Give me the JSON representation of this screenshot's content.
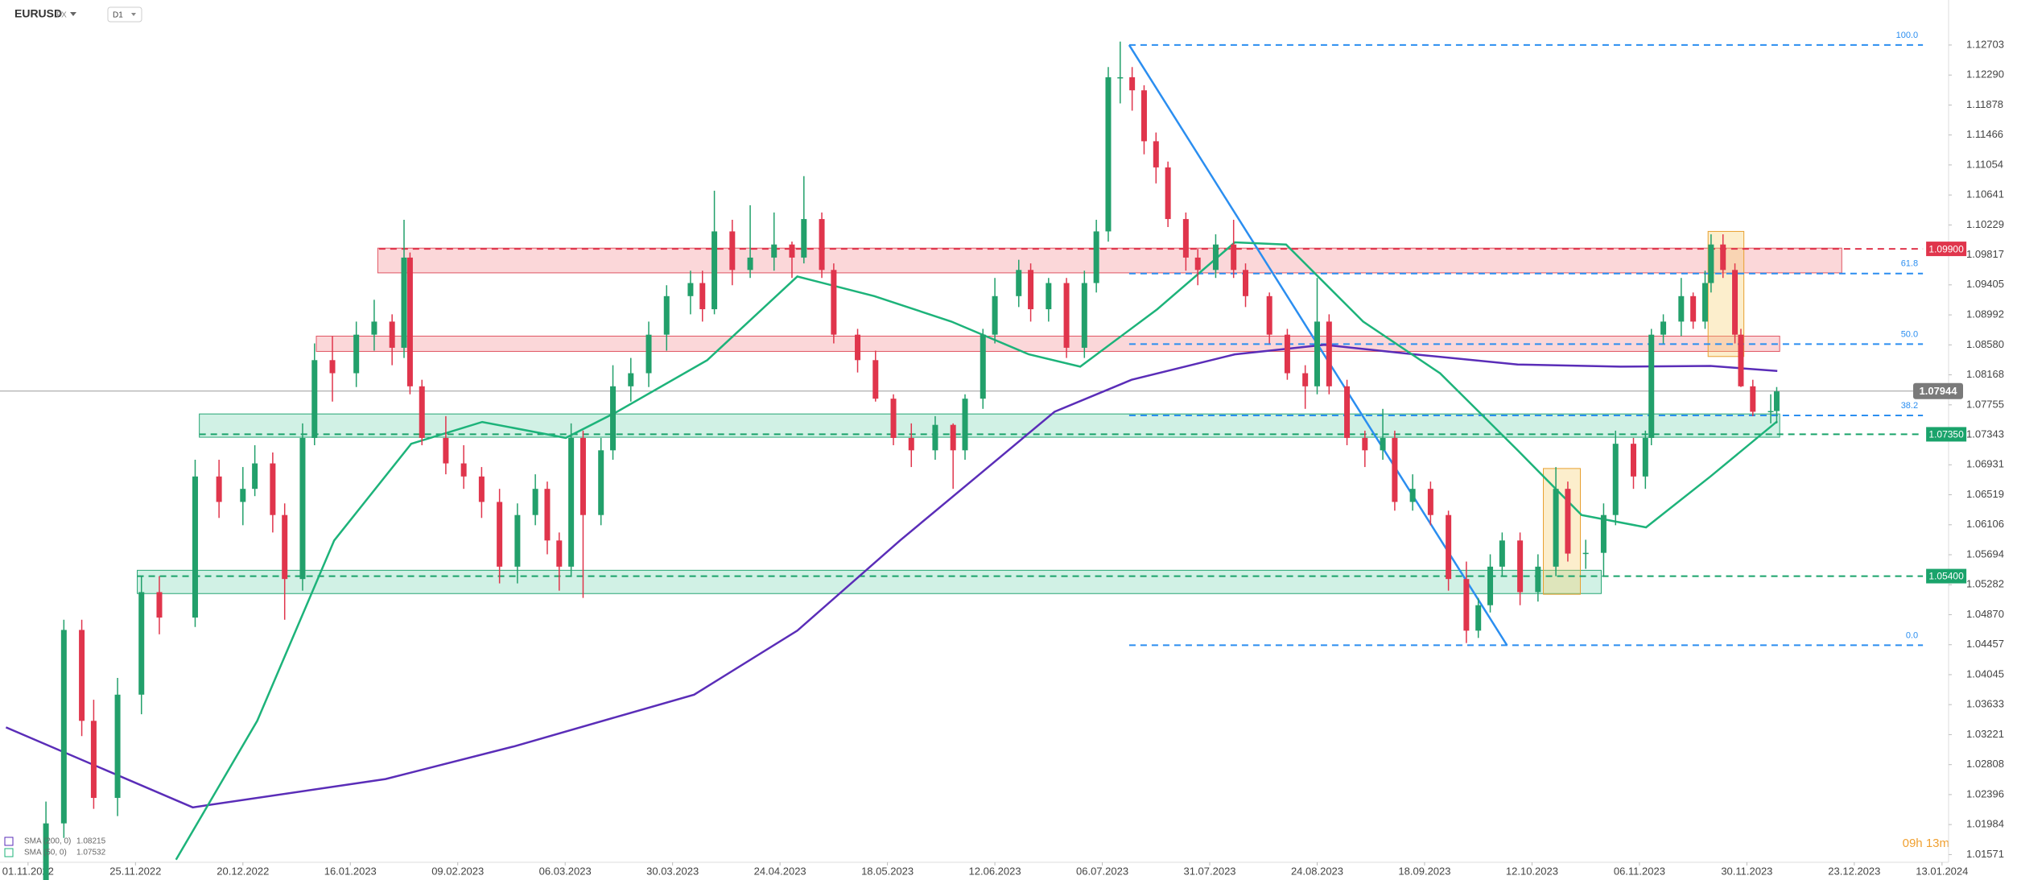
{
  "chart_data": {
    "type": "candlestick",
    "symbol": "EURUSD",
    "market": "FX",
    "timeframe": "D1",
    "timer": "09h 13m",
    "xlim": [
      -4.7,
      321.8
    ],
    "ylim": [
      1.01465,
      1.13322
    ],
    "bull_color": "#22a06b",
    "bear_color": "#e0354c",
    "xticks": [
      {
        "value": 0,
        "label": "01.11.2022"
      },
      {
        "value": 18,
        "label": "25.11.2022"
      },
      {
        "value": 36,
        "label": "20.12.2022"
      },
      {
        "value": 54,
        "label": "16.01.2023"
      },
      {
        "value": 72,
        "label": "09.02.2023"
      },
      {
        "value": 90,
        "label": "06.03.2023"
      },
      {
        "value": 108,
        "label": "30.03.2023"
      },
      {
        "value": 126,
        "label": "24.04.2023"
      },
      {
        "value": 144,
        "label": "18.05.2023"
      },
      {
        "value": 162,
        "label": "12.06.2023"
      },
      {
        "value": 180,
        "label": "06.07.2023"
      },
      {
        "value": 198,
        "label": "31.07.2023"
      },
      {
        "value": 216,
        "label": "24.08.2023"
      },
      {
        "value": 234,
        "label": "18.09.2023"
      },
      {
        "value": 252,
        "label": "12.10.2023"
      },
      {
        "value": 270,
        "label": "06.11.2023"
      },
      {
        "value": 288,
        "label": "30.11.2023"
      },
      {
        "value": 306,
        "label": "23.12.2023"
      },
      {
        "value": 320.7,
        "label": "13.01.2024"
      }
    ],
    "yticks": [
      1.12703,
      {
        "value": 1.1229,
        "label": "1.12290"
      },
      1.11878,
      1.11466,
      1.11054,
      1.10641,
      1.10229,
      1.09817,
      1.09405,
      1.08992,
      {
        "value": 1.0858,
        "label": "1.08580"
      },
      1.08168,
      1.07755,
      1.07343,
      1.06931,
      1.06519,
      1.06106,
      1.05694,
      1.05282,
      {
        "value": 1.0487,
        "label": "1.04870"
      },
      1.04457,
      1.04045,
      1.03633,
      1.03221,
      1.02808,
      1.02396,
      1.01984,
      1.01571
    ],
    "candles": [
      {
        "x": 3,
        "o": 1.012,
        "h": 1.023,
        "l": 1.009,
        "c": 1.02
      },
      {
        "x": 6,
        "o": 1.02,
        "h": 1.048,
        "l": 1.018,
        "c": 1.0466
      },
      {
        "x": 9,
        "o": 1.0466,
        "h": 1.048,
        "l": 1.032,
        "c": 1.0341
      },
      {
        "x": 11,
        "o": 1.0341,
        "h": 1.037,
        "l": 1.022,
        "c": 1.0235
      },
      {
        "x": 15,
        "o": 1.0235,
        "h": 1.04,
        "l": 1.021,
        "c": 1.0377
      },
      {
        "x": 19,
        "o": 1.0377,
        "h": 1.054,
        "l": 1.035,
        "c": 1.0518
      },
      {
        "x": 22,
        "o": 1.0518,
        "h": 1.054,
        "l": 1.046,
        "c": 1.0483
      },
      {
        "x": 28,
        "o": 1.0483,
        "h": 1.07,
        "l": 1.047,
        "c": 1.0677
      },
      {
        "x": 32,
        "o": 1.0677,
        "h": 1.07,
        "l": 1.062,
        "c": 1.0642
      },
      {
        "x": 36,
        "o": 1.0642,
        "h": 1.069,
        "l": 1.061,
        "c": 1.066
      },
      {
        "x": 38,
        "o": 1.066,
        "h": 1.072,
        "l": 1.065,
        "c": 1.0695
      },
      {
        "x": 41,
        "o": 1.0695,
        "h": 1.071,
        "l": 1.06,
        "c": 1.0624
      },
      {
        "x": 43,
        "o": 1.0624,
        "h": 1.064,
        "l": 1.048,
        "c": 1.0536
      },
      {
        "x": 46,
        "o": 1.0536,
        "h": 1.075,
        "l": 1.052,
        "c": 1.073
      },
      {
        "x": 48,
        "o": 1.073,
        "h": 1.086,
        "l": 1.072,
        "c": 1.0837
      },
      {
        "x": 51,
        "o": 1.0837,
        "h": 1.087,
        "l": 1.078,
        "c": 1.0819
      },
      {
        "x": 55,
        "o": 1.0819,
        "h": 1.089,
        "l": 1.08,
        "c": 1.0872
      },
      {
        "x": 58,
        "o": 1.0872,
        "h": 1.092,
        "l": 1.085,
        "c": 1.089
      },
      {
        "x": 61,
        "o": 1.089,
        "h": 1.09,
        "l": 1.083,
        "c": 1.0854
      },
      {
        "x": 63,
        "o": 1.0854,
        "h": 1.103,
        "l": 1.084,
        "c": 1.0978
      },
      {
        "x": 64,
        "o": 1.0978,
        "h": 1.0985,
        "l": 1.079,
        "c": 1.0801
      },
      {
        "x": 66,
        "o": 1.0801,
        "h": 1.081,
        "l": 1.072,
        "c": 1.073
      },
      {
        "x": 70,
        "o": 1.073,
        "h": 1.076,
        "l": 1.068,
        "c": 1.0695
      },
      {
        "x": 73,
        "o": 1.0695,
        "h": 1.072,
        "l": 1.066,
        "c": 1.0677
      },
      {
        "x": 76,
        "o": 1.0677,
        "h": 1.069,
        "l": 1.062,
        "c": 1.0642
      },
      {
        "x": 79,
        "o": 1.0642,
        "h": 1.066,
        "l": 1.053,
        "c": 1.0553
      },
      {
        "x": 82,
        "o": 1.0553,
        "h": 1.064,
        "l": 1.053,
        "c": 1.0624
      },
      {
        "x": 85,
        "o": 1.0624,
        "h": 1.068,
        "l": 1.061,
        "c": 1.066
      },
      {
        "x": 87,
        "o": 1.066,
        "h": 1.067,
        "l": 1.057,
        "c": 1.0589
      },
      {
        "x": 89,
        "o": 1.0589,
        "h": 1.06,
        "l": 1.052,
        "c": 1.0553
      },
      {
        "x": 91,
        "o": 1.0553,
        "h": 1.075,
        "l": 1.054,
        "c": 1.073
      },
      {
        "x": 93,
        "o": 1.073,
        "h": 1.074,
        "l": 1.051,
        "c": 1.0624
      },
      {
        "x": 96,
        "o": 1.0624,
        "h": 1.073,
        "l": 1.061,
        "c": 1.0713
      },
      {
        "x": 98,
        "o": 1.0713,
        "h": 1.083,
        "l": 1.07,
        "c": 1.0801
      },
      {
        "x": 101,
        "o": 1.0801,
        "h": 1.084,
        "l": 1.078,
        "c": 1.0819
      },
      {
        "x": 104,
        "o": 1.0819,
        "h": 1.089,
        "l": 1.08,
        "c": 1.0872
      },
      {
        "x": 107,
        "o": 1.0872,
        "h": 1.094,
        "l": 1.085,
        "c": 1.0925
      },
      {
        "x": 111,
        "o": 1.0925,
        "h": 1.096,
        "l": 1.09,
        "c": 1.0943
      },
      {
        "x": 113,
        "o": 1.0943,
        "h": 1.096,
        "l": 1.089,
        "c": 1.0907
      },
      {
        "x": 115,
        "o": 1.0907,
        "h": 1.107,
        "l": 1.09,
        "c": 1.1014
      },
      {
        "x": 118,
        "o": 1.1014,
        "h": 1.103,
        "l": 1.094,
        "c": 1.0961
      },
      {
        "x": 121,
        "o": 1.0961,
        "h": 1.105,
        "l": 1.095,
        "c": 1.0978
      },
      {
        "x": 125,
        "o": 1.0978,
        "h": 1.104,
        "l": 1.096,
        "c": 1.0996
      },
      {
        "x": 128,
        "o": 1.0996,
        "h": 1.1,
        "l": 1.095,
        "c": 1.0978
      },
      {
        "x": 130,
        "o": 1.0978,
        "h": 1.109,
        "l": 1.097,
        "c": 1.1031
      },
      {
        "x": 133,
        "o": 1.1031,
        "h": 1.104,
        "l": 1.095,
        "c": 1.0961
      },
      {
        "x": 135,
        "o": 1.0961,
        "h": 1.097,
        "l": 1.086,
        "c": 1.0872
      },
      {
        "x": 139,
        "o": 1.0872,
        "h": 1.088,
        "l": 1.082,
        "c": 1.0837
      },
      {
        "x": 142,
        "o": 1.0837,
        "h": 1.085,
        "l": 1.078,
        "c": 1.0784
      },
      {
        "x": 145,
        "o": 1.0784,
        "h": 1.079,
        "l": 1.072,
        "c": 1.073
      },
      {
        "x": 148,
        "o": 1.073,
        "h": 1.075,
        "l": 1.069,
        "c": 1.0713
      },
      {
        "x": 152,
        "o": 1.0713,
        "h": 1.076,
        "l": 1.07,
        "c": 1.0748
      },
      {
        "x": 155,
        "o": 1.0748,
        "h": 1.075,
        "l": 1.066,
        "c": 1.0713
      },
      {
        "x": 157,
        "o": 1.0713,
        "h": 1.079,
        "l": 1.07,
        "c": 1.0784
      },
      {
        "x": 160,
        "o": 1.0784,
        "h": 1.088,
        "l": 1.077,
        "c": 1.0872
      },
      {
        "x": 162,
        "o": 1.0872,
        "h": 1.095,
        "l": 1.086,
        "c": 1.0925
      },
      {
        "x": 166,
        "o": 1.0925,
        "h": 1.0975,
        "l": 1.091,
        "c": 1.0961
      },
      {
        "x": 168,
        "o": 1.0961,
        "h": 1.097,
        "l": 1.089,
        "c": 1.0907
      },
      {
        "x": 171,
        "o": 1.0907,
        "h": 1.095,
        "l": 1.089,
        "c": 1.0943
      },
      {
        "x": 174,
        "o": 1.0943,
        "h": 1.095,
        "l": 1.084,
        "c": 1.0854
      },
      {
        "x": 177,
        "o": 1.0854,
        "h": 1.096,
        "l": 1.084,
        "c": 1.0943
      },
      {
        "x": 179,
        "o": 1.0943,
        "h": 1.103,
        "l": 1.093,
        "c": 1.1014
      },
      {
        "x": 181,
        "o": 1.1014,
        "h": 1.124,
        "l": 1.1,
        "c": 1.1226
      },
      {
        "x": 183,
        "o": 1.1226,
        "h": 1.1275,
        "l": 1.119,
        "c": 1.1226
      },
      {
        "x": 185,
        "o": 1.1226,
        "h": 1.124,
        "l": 1.118,
        "c": 1.1208
      },
      {
        "x": 187,
        "o": 1.1208,
        "h": 1.1215,
        "l": 1.112,
        "c": 1.1138
      },
      {
        "x": 189,
        "o": 1.1138,
        "h": 1.115,
        "l": 1.108,
        "c": 1.1102
      },
      {
        "x": 191,
        "o": 1.1102,
        "h": 1.111,
        "l": 1.102,
        "c": 1.1031
      },
      {
        "x": 194,
        "o": 1.1031,
        "h": 1.104,
        "l": 1.096,
        "c": 1.0978
      },
      {
        "x": 196,
        "o": 1.0978,
        "h": 1.099,
        "l": 1.094,
        "c": 1.0961
      },
      {
        "x": 199,
        "o": 1.0961,
        "h": 1.101,
        "l": 1.095,
        "c": 1.0996
      },
      {
        "x": 202,
        "o": 1.0996,
        "h": 1.103,
        "l": 1.095,
        "c": 1.0961
      },
      {
        "x": 204,
        "o": 1.0961,
        "h": 1.097,
        "l": 1.091,
        "c": 1.0925
      },
      {
        "x": 208,
        "o": 1.0925,
        "h": 1.093,
        "l": 1.086,
        "c": 1.0872
      },
      {
        "x": 211,
        "o": 1.0872,
        "h": 1.088,
        "l": 1.081,
        "c": 1.0819
      },
      {
        "x": 214,
        "o": 1.0819,
        "h": 1.083,
        "l": 1.077,
        "c": 1.0801
      },
      {
        "x": 216,
        "o": 1.0801,
        "h": 1.095,
        "l": 1.079,
        "c": 1.089
      },
      {
        "x": 218,
        "o": 1.089,
        "h": 1.09,
        "l": 1.079,
        "c": 1.0801
      },
      {
        "x": 221,
        "o": 1.0801,
        "h": 1.081,
        "l": 1.072,
        "c": 1.073
      },
      {
        "x": 224,
        "o": 1.073,
        "h": 1.074,
        "l": 1.069,
        "c": 1.0713
      },
      {
        "x": 227,
        "o": 1.0713,
        "h": 1.077,
        "l": 1.07,
        "c": 1.073
      },
      {
        "x": 229,
        "o": 1.073,
        "h": 1.074,
        "l": 1.063,
        "c": 1.0642
      },
      {
        "x": 232,
        "o": 1.0642,
        "h": 1.068,
        "l": 1.063,
        "c": 1.066
      },
      {
        "x": 235,
        "o": 1.066,
        "h": 1.067,
        "l": 1.061,
        "c": 1.0624
      },
      {
        "x": 238,
        "o": 1.0624,
        "h": 1.063,
        "l": 1.052,
        "c": 1.0536
      },
      {
        "x": 241,
        "o": 1.0536,
        "h": 1.056,
        "l": 1.0448,
        "c": 1.0465
      },
      {
        "x": 243,
        "o": 1.0465,
        "h": 1.051,
        "l": 1.0455,
        "c": 1.05
      },
      {
        "x": 245,
        "o": 1.05,
        "h": 1.057,
        "l": 1.049,
        "c": 1.0553
      },
      {
        "x": 247,
        "o": 1.0553,
        "h": 1.06,
        "l": 1.054,
        "c": 1.0589
      },
      {
        "x": 250,
        "o": 1.0589,
        "h": 1.06,
        "l": 1.05,
        "c": 1.0518
      },
      {
        "x": 253,
        "o": 1.0518,
        "h": 1.057,
        "l": 1.0505,
        "c": 1.0553
      },
      {
        "x": 256,
        "o": 1.0553,
        "h": 1.069,
        "l": 1.054,
        "c": 1.066
      },
      {
        "x": 258,
        "o": 1.066,
        "h": 1.067,
        "l": 1.056,
        "c": 1.0571
      },
      {
        "x": 261,
        "o": 1.0571,
        "h": 1.059,
        "l": 1.055,
        "c": 1.0572
      },
      {
        "x": 264,
        "o": 1.0572,
        "h": 1.064,
        "l": 1.054,
        "c": 1.0624
      },
      {
        "x": 266,
        "o": 1.0624,
        "h": 1.074,
        "l": 1.061,
        "c": 1.0722
      },
      {
        "x": 269,
        "o": 1.0722,
        "h": 1.073,
        "l": 1.066,
        "c": 1.0677
      },
      {
        "x": 271,
        "o": 1.0677,
        "h": 1.074,
        "l": 1.066,
        "c": 1.073
      },
      {
        "x": 272,
        "o": 1.073,
        "h": 1.088,
        "l": 1.072,
        "c": 1.0872
      },
      {
        "x": 274,
        "o": 1.0872,
        "h": 1.09,
        "l": 1.086,
        "c": 1.089
      },
      {
        "x": 277,
        "o": 1.089,
        "h": 1.095,
        "l": 1.087,
        "c": 1.0925
      },
      {
        "x": 279,
        "o": 1.0925,
        "h": 1.093,
        "l": 1.088,
        "c": 1.089
      },
      {
        "x": 281,
        "o": 1.089,
        "h": 1.096,
        "l": 1.088,
        "c": 1.0943
      },
      {
        "x": 282,
        "o": 1.0943,
        "h": 1.101,
        "l": 1.093,
        "c": 1.0996
      },
      {
        "x": 284,
        "o": 1.0996,
        "h": 1.101,
        "l": 1.095,
        "c": 1.0961
      },
      {
        "x": 286,
        "o": 1.0961,
        "h": 1.097,
        "l": 1.086,
        "c": 1.0872
      },
      {
        "x": 287,
        "o": 1.0872,
        "h": 1.088,
        "l": 1.08,
        "c": 1.0801
      },
      {
        "x": 289,
        "o": 1.0801,
        "h": 1.081,
        "l": 1.076,
        "c": 1.0766
      },
      {
        "x": 292,
        "o": 1.0766,
        "h": 1.079,
        "l": 1.075,
        "c": 1.0767
      },
      {
        "x": 293,
        "o": 1.0767,
        "h": 1.08,
        "l": 1.075,
        "c": 1.0794
      }
    ],
    "series": [
      {
        "name": "SMA (200, 0)",
        "last": 1.08215,
        "color": "#5a2db8",
        "x": [
          -3.7,
          27.6,
          59.9,
          81.5,
          111.6,
          128.9,
          146.1,
          159,
          172,
          184.9,
          202.2,
          217.2,
          232.3,
          249.6,
          266.8,
          281.9,
          293.1
        ],
        "values": [
          1.0332,
          1.0222,
          1.0261,
          1.0306,
          1.0377,
          1.0465,
          1.0589,
          1.0677,
          1.0766,
          1.081,
          1.0845,
          1.0858,
          1.0845,
          1.0831,
          1.0828,
          1.0829,
          1.0822
        ]
      },
      {
        "name": "SMA (50, 0)",
        "last": 1.07532,
        "color": "#1db37a",
        "x": [
          24.8,
          38.4,
          51.3,
          64.2,
          76.1,
          90.1,
          98.7,
          113.8,
          128.9,
          141.8,
          154.7,
          167.7,
          176.3,
          189.2,
          202.2,
          210.8,
          223.7,
          236.6,
          249.6,
          260.3,
          271.1,
          281.9,
          293.1
        ],
        "values": [
          1.015,
          1.0341,
          1.0589,
          1.0722,
          1.0752,
          1.073,
          1.0766,
          1.0837,
          1.0952,
          1.0925,
          1.089,
          1.0845,
          1.0828,
          1.0907,
          1.0999,
          1.0996,
          1.089,
          1.0819,
          1.0713,
          1.0624,
          1.0607,
          1.0677,
          1.0753
        ]
      }
    ],
    "zones": [
      {
        "x0": 58.6,
        "x1": 303.9,
        "top": 1.0991,
        "bottom": 1.0957,
        "fill": "rgba(240,110,120,0.28)",
        "stroke": "#e05563"
      },
      {
        "x0": 48.3,
        "x1": 293.5,
        "top": 1.087,
        "bottom": 1.0849,
        "fill": "rgba(240,110,120,0.28)",
        "stroke": "#e05563"
      },
      {
        "x0": 28.7,
        "x1": 293.5,
        "top": 1.0763,
        "bottom": 1.0731,
        "fill": "rgba(70,200,150,0.25)",
        "stroke": "#25a574"
      },
      {
        "x0": 18.3,
        "x1": 263.6,
        "top": 1.0548,
        "bottom": 1.0516,
        "fill": "rgba(70,200,150,0.25)",
        "stroke": "#25a574"
      },
      {
        "x0": 253.9,
        "x1": 260.1,
        "top": 1.0688,
        "bottom": 1.0515,
        "fill": "rgba(245,205,110,0.35)",
        "stroke": "#e8a030"
      },
      {
        "x0": 281.5,
        "x1": 287.5,
        "top": 1.1014,
        "bottom": 1.0842,
        "fill": "rgba(245,205,110,0.35)",
        "stroke": "#e8a030"
      }
    ],
    "levels": [
      {
        "x0": 58.8,
        "x1": 317.5,
        "value": {
          "value": 1.099,
          "label": "1.09900"
        },
        "color": "#e0354c"
      },
      {
        "x0": 28.7,
        "x1": 317.5,
        "value": {
          "value": 1.0735,
          "label": "1.07350"
        },
        "color": "#1aa36b"
      },
      {
        "x0": 18.3,
        "x1": 317.5,
        "value": {
          "value": 1.054,
          "label": "1.05400"
        },
        "color": "#1aa36b"
      }
    ],
    "last_price": 1.07944,
    "fib": {
      "x0": 184.5,
      "x1": 317.5,
      "color": "#2b8ef0",
      "levels": [
        {
          "label": "100.0",
          "price": 1.12703
        },
        {
          "label": "61.8",
          "price": 1.0956
        },
        {
          "label": "50.0",
          "price": 1.0859
        },
        {
          "label": "38.2",
          "price": 1.0761
        },
        {
          "label": "0.0",
          "price": 1.0445
        }
      ]
    },
    "trendline": {
      "color": "#2b8ef0",
      "x": [
        184.5,
        247.8
      ],
      "values": [
        1.12703,
        1.0445
      ]
    }
  }
}
